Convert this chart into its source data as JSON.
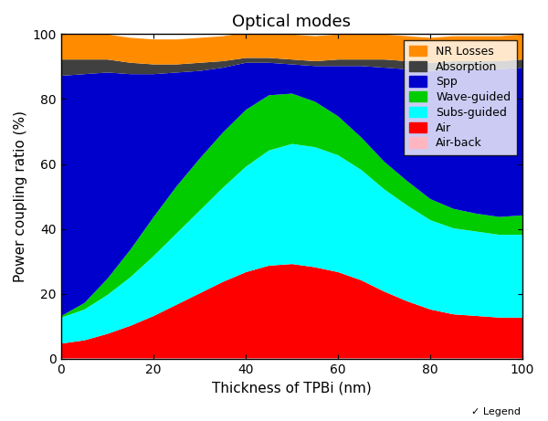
{
  "title": "Optical modes",
  "xlabel": "Thickness of TPBi (nm)",
  "ylabel": "Power coupling ratio (%)",
  "x": [
    0,
    5,
    10,
    15,
    20,
    25,
    30,
    35,
    40,
    45,
    50,
    55,
    60,
    65,
    70,
    75,
    80,
    85,
    90,
    95,
    100
  ],
  "air_back": [
    0.3,
    0.3,
    0.3,
    0.3,
    0.3,
    0.3,
    0.3,
    0.3,
    0.3,
    0.3,
    0.3,
    0.3,
    0.3,
    0.3,
    0.3,
    0.3,
    0.3,
    0.3,
    0.3,
    0.3,
    0.3
  ],
  "air": [
    4.5,
    5.5,
    7.5,
    10.0,
    13.0,
    16.5,
    20.0,
    23.5,
    26.5,
    28.5,
    29.0,
    28.0,
    26.5,
    24.0,
    20.5,
    17.5,
    15.0,
    13.5,
    13.0,
    12.5,
    12.5
  ],
  "subs_guided": [
    8.0,
    9.5,
    12.0,
    15.0,
    18.5,
    22.0,
    25.5,
    29.0,
    32.5,
    35.5,
    37.0,
    37.0,
    36.0,
    34.0,
    31.5,
    29.5,
    27.5,
    26.5,
    26.0,
    25.5,
    25.5
  ],
  "wave_guided": [
    0.5,
    2.0,
    5.0,
    8.5,
    12.0,
    14.5,
    16.0,
    17.0,
    17.5,
    17.0,
    15.5,
    14.0,
    12.0,
    10.0,
    8.5,
    7.5,
    6.5,
    6.0,
    5.5,
    5.5,
    6.0
  ],
  "spp": [
    74.0,
    70.5,
    63.5,
    54.0,
    44.0,
    35.0,
    27.0,
    20.0,
    14.5,
    10.0,
    9.0,
    11.0,
    15.5,
    22.0,
    29.0,
    34.5,
    39.5,
    43.0,
    44.5,
    45.5,
    45.5
  ],
  "absorption": [
    5.0,
    4.5,
    4.0,
    3.5,
    3.0,
    2.5,
    2.5,
    2.0,
    1.5,
    1.5,
    1.5,
    1.5,
    2.0,
    2.0,
    2.5,
    2.5,
    2.5,
    2.5,
    2.5,
    2.5,
    2.5
  ],
  "nr_losses": [
    7.7,
    7.7,
    7.7,
    7.7,
    7.7,
    7.7,
    7.7,
    7.7,
    7.7,
    7.7,
    7.7,
    7.7,
    7.7,
    7.7,
    7.7,
    7.7,
    7.7,
    7.7,
    7.7,
    7.7,
    7.7
  ],
  "colors": {
    "air_back": "#ffb6c1",
    "air": "#ff0000",
    "subs_guided": "#00ffff",
    "wave_guided": "#00cc00",
    "spp": "#0000cc",
    "absorption": "#404040",
    "nr_losses": "#ff8c00"
  },
  "labels": {
    "nr_losses": "NR Losses",
    "absorption": "Absorption",
    "spp": "Spp",
    "wave_guided": "Wave-guided",
    "subs_guided": "Subs-guided",
    "air": "Air",
    "air_back": "Air-back"
  },
  "xlim": [
    0,
    100
  ],
  "ylim": [
    0,
    100
  ],
  "xticks": [
    0,
    20,
    40,
    60,
    80,
    100
  ],
  "yticks": [
    0,
    20,
    40,
    60,
    80,
    100
  ],
  "legend_checkbox_label": "✓ Legend"
}
